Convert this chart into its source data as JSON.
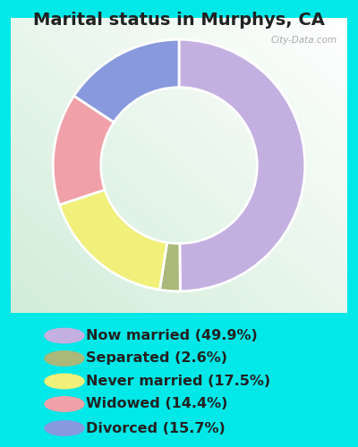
{
  "title": "Marital status in Murphys, CA",
  "slices": [
    49.9,
    2.6,
    17.5,
    14.4,
    15.7
  ],
  "labels": [
    "Now married (49.9%)",
    "Separated (2.6%)",
    "Never married (17.5%)",
    "Widowed (14.4%)",
    "Divorced (15.7%)"
  ],
  "colors": [
    "#c4b0e0",
    "#aab87a",
    "#f0f07a",
    "#f0a0a8",
    "#8899dd"
  ],
  "start_angle": 90,
  "background_color": "#00e8e8",
  "title_fontsize": 14,
  "title_color": "#222222",
  "watermark": "City-Data.com",
  "legend_fontsize": 11.5,
  "legend_text_color": "#222222"
}
